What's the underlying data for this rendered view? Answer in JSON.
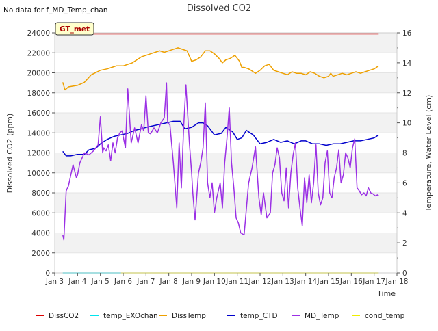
{
  "chart_data": {
    "type": "line",
    "title": "Dissolved CO2",
    "note": "No data for f_MD_Temp_chan",
    "badge": "GT_met",
    "xlabel": "Time",
    "ylabel_left": "Dissolved CO2 (ppm)",
    "ylabel_right": "Temperature, Water Level (cm)",
    "x_range": [
      3,
      18
    ],
    "x_ticks": [
      3,
      4,
      5,
      6,
      7,
      8,
      9,
      10,
      11,
      12,
      13,
      14,
      15,
      16,
      17,
      18
    ],
    "x_tick_labels": [
      "Jan 3",
      "Jan 4",
      "Jan 5",
      "Jan 6",
      "Jan 7",
      "Jan 8",
      "Jan 9",
      "Jan 10",
      "Jan 11",
      "Jan 12",
      "Jan 13",
      "Jan 14",
      "Jan 15",
      "Jan 16",
      "Jan 17",
      "Jan 18"
    ],
    "y_left_range": [
      0,
      24000
    ],
    "y_left_ticks": [
      0,
      2000,
      4000,
      6000,
      8000,
      10000,
      12000,
      14000,
      16000,
      18000,
      20000,
      22000,
      24000
    ],
    "y_left_tick_labels": [
      "0",
      "2000",
      "4000",
      "6000",
      "8000",
      "10000",
      "12000",
      "14000",
      "16000",
      "18000",
      "20000",
      "22000",
      "24000"
    ],
    "y_right_range": [
      0,
      16
    ],
    "y_right_ticks": [
      0,
      2,
      4,
      6,
      8,
      10,
      12,
      14,
      16
    ],
    "y_right_tick_labels": [
      "0",
      "2",
      "4",
      "6",
      "8",
      "10",
      "12",
      "14",
      "16"
    ],
    "series": [
      {
        "name": "DissCO2",
        "axis": "left",
        "color": "#dd0000",
        "x": [
          3.35,
          17.2
        ],
        "y": [
          23900,
          23900
        ]
      },
      {
        "name": "temp_EXOchan",
        "axis": "right",
        "color": "#00e5ee",
        "x": [
          3.35,
          5.9
        ],
        "y": [
          0.0,
          0.0
        ]
      },
      {
        "name": "DissTemp",
        "axis": "right",
        "color": "#eea000",
        "x": [
          3.35,
          3.45,
          3.6,
          4.0,
          4.3,
          4.6,
          5.0,
          5.3,
          5.5,
          5.7,
          6.0,
          6.2,
          6.4,
          6.6,
          6.8,
          7.0,
          7.2,
          7.4,
          7.6,
          7.8,
          8.0,
          8.2,
          8.4,
          8.6,
          8.8,
          9.0,
          9.2,
          9.4,
          9.6,
          9.8,
          10.0,
          10.2,
          10.35,
          10.5,
          10.7,
          10.9,
          11.1,
          11.2,
          11.3,
          11.5,
          11.6,
          11.8,
          12.0,
          12.2,
          12.4,
          12.6,
          12.8,
          13.0,
          13.2,
          13.4,
          13.6,
          13.8,
          14.0,
          14.2,
          14.4,
          14.6,
          14.8,
          15.0,
          15.1,
          15.2,
          15.4,
          15.6,
          15.8,
          16.0,
          16.2,
          16.4,
          16.6,
          16.8,
          17.0,
          17.1,
          17.2
        ],
        "y": [
          12.7,
          12.2,
          12.4,
          12.5,
          12.7,
          13.2,
          13.5,
          13.6,
          13.7,
          13.8,
          13.8,
          13.9,
          14.0,
          14.2,
          14.4,
          14.5,
          14.6,
          14.7,
          14.8,
          14.7,
          14.8,
          14.9,
          15.0,
          14.9,
          14.8,
          14.1,
          14.2,
          14.4,
          14.8,
          14.8,
          14.6,
          14.3,
          14.0,
          14.2,
          14.3,
          14.5,
          14.1,
          13.7,
          13.7,
          13.6,
          13.5,
          13.3,
          13.5,
          13.8,
          13.9,
          13.5,
          13.4,
          13.3,
          13.2,
          13.4,
          13.3,
          13.3,
          13.2,
          13.4,
          13.3,
          13.1,
          13.0,
          13.1,
          13.3,
          13.1,
          13.2,
          13.3,
          13.2,
          13.3,
          13.4,
          13.3,
          13.4,
          13.5,
          13.6,
          13.7,
          13.8
        ]
      },
      {
        "name": "temp_CTD",
        "axis": "right",
        "color": "#0000cc",
        "x": [
          3.35,
          3.5,
          3.7,
          4.0,
          4.3,
          4.5,
          4.8,
          5.0,
          5.3,
          5.6,
          5.9,
          6.2,
          6.5,
          6.8,
          7.0,
          7.3,
          7.6,
          7.9,
          8.2,
          8.5,
          8.7,
          9.0,
          9.3,
          9.5,
          9.7,
          10.0,
          10.3,
          10.5,
          10.8,
          11.0,
          11.2,
          11.4,
          11.7,
          12.0,
          12.3,
          12.6,
          12.9,
          13.2,
          13.5,
          13.8,
          14.0,
          14.3,
          14.6,
          14.9,
          15.2,
          15.5,
          15.8,
          16.1,
          16.4,
          16.7,
          17.0,
          17.2
        ],
        "y": [
          8.1,
          7.8,
          7.8,
          7.9,
          7.9,
          8.2,
          8.3,
          8.6,
          8.9,
          9.1,
          9.2,
          9.3,
          9.5,
          9.6,
          9.7,
          9.8,
          9.9,
          10.0,
          10.1,
          10.1,
          9.6,
          9.7,
          10.0,
          10.0,
          9.8,
          9.2,
          9.3,
          9.7,
          9.4,
          8.9,
          9.0,
          9.5,
          9.2,
          8.6,
          8.7,
          8.9,
          8.7,
          8.8,
          8.6,
          8.8,
          8.8,
          8.6,
          8.6,
          8.5,
          8.6,
          8.6,
          8.7,
          8.8,
          8.8,
          8.9,
          9.0,
          9.2
        ]
      },
      {
        "name": "MD_Temp",
        "axis": "left",
        "color": "#9b30e5",
        "x": [
          3.35,
          3.4,
          3.5,
          3.6,
          3.8,
          3.95,
          4.0,
          4.1,
          4.3,
          4.5,
          4.7,
          4.9,
          5.0,
          5.1,
          5.15,
          5.25,
          5.35,
          5.45,
          5.55,
          5.65,
          5.75,
          5.85,
          5.95,
          6.1,
          6.2,
          6.35,
          6.5,
          6.65,
          6.8,
          6.9,
          7.0,
          7.1,
          7.2,
          7.35,
          7.5,
          7.65,
          7.8,
          7.9,
          7.95,
          8.05,
          8.2,
          8.35,
          8.45,
          8.55,
          8.65,
          8.75,
          8.9,
          9.0,
          9.05,
          9.15,
          9.3,
          9.4,
          9.5,
          9.6,
          9.7,
          9.8,
          9.9,
          10.0,
          10.1,
          10.25,
          10.35,
          10.45,
          10.55,
          10.65,
          10.75,
          10.85,
          10.95,
          11.05,
          11.15,
          11.3,
          11.5,
          11.65,
          11.8,
          11.95,
          12.05,
          12.15,
          12.3,
          12.45,
          12.55,
          12.65,
          12.75,
          12.85,
          12.95,
          13.05,
          13.15,
          13.25,
          13.35,
          13.45,
          13.55,
          13.65,
          13.75,
          13.85,
          13.95,
          14.05,
          14.15,
          14.25,
          14.35,
          14.45,
          14.55,
          14.65,
          14.75,
          14.85,
          14.95,
          15.05,
          15.15,
          15.25,
          15.35,
          15.45,
          15.55,
          15.65,
          15.75,
          15.85,
          15.95,
          16.05,
          16.15,
          16.25,
          16.35,
          16.45,
          16.55,
          16.65,
          16.75,
          16.85,
          16.95,
          17.05,
          17.15,
          17.2
        ],
        "y": [
          3800,
          3300,
          8200,
          8700,
          10800,
          9500,
          9800,
          11000,
          12000,
          11800,
          12200,
          12800,
          15600,
          12000,
          12500,
          12200,
          12800,
          11200,
          13000,
          12000,
          13500,
          14000,
          14200,
          12500,
          18400,
          13000,
          14500,
          13000,
          14800,
          14200,
          17700,
          14000,
          13900,
          14500,
          14000,
          15000,
          15500,
          19000,
          15000,
          14800,
          11000,
          6500,
          13000,
          8500,
          14500,
          18800,
          13000,
          10000,
          8000,
          5300,
          10000,
          11000,
          12500,
          17000,
          9000,
          7500,
          9000,
          6000,
          7500,
          9000,
          6500,
          11000,
          13500,
          16500,
          11000,
          8500,
          5500,
          5000,
          4000,
          3800,
          9000,
          10500,
          12600,
          7500,
          5800,
          8000,
          5500,
          6000,
          10000,
          10800,
          12500,
          11500,
          8000,
          7200,
          10500,
          6500,
          10000,
          11800,
          13000,
          8500,
          6500,
          4700,
          9500,
          7000,
          9800,
          7000,
          9000,
          12800,
          8000,
          6800,
          7500,
          11000,
          12200,
          8000,
          7500,
          9500,
          10500,
          12300,
          9000,
          9800,
          12000,
          11500,
          10500,
          12500,
          13400,
          8500,
          8200,
          7800,
          8000,
          7700,
          8500,
          8000,
          7900,
          7700,
          7800,
          7700
        ]
      },
      {
        "name": "cond_temp",
        "axis": "right",
        "color": "#eeee00",
        "x": [
          5.9,
          17.2
        ],
        "y": [
          0.0,
          0.0
        ]
      }
    ]
  }
}
